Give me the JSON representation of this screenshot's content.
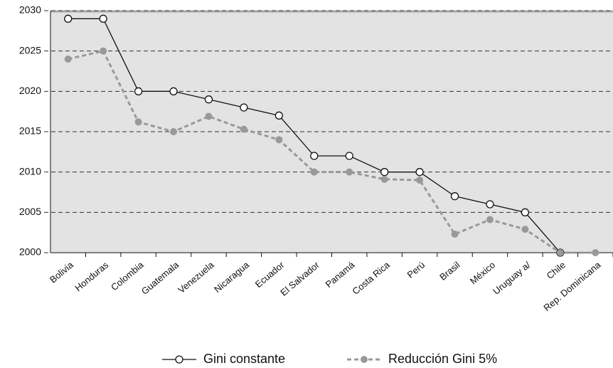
{
  "chart_data": {
    "type": "line",
    "categories": [
      "Bolivia",
      "Honduras",
      "Colombia",
      "Guatemala",
      "Venezuela",
      "Nicaragua",
      "Ecuador",
      "El Salvador",
      "Panamá",
      "Costa Rica",
      "Perú",
      "Brasil",
      "México",
      "Uruguay a/",
      "Chile",
      "Rep. Dominicana"
    ],
    "series": [
      {
        "name": "Gini constante",
        "color": "#111111",
        "values": [
          2029,
          2029,
          2020,
          2020,
          2019,
          2018,
          2017,
          2012,
          2012,
          2010,
          2010,
          2007,
          2006,
          2005,
          2000,
          null
        ]
      },
      {
        "name": "Reducción Gini 5%",
        "color": "#999999",
        "values": [
          2024,
          2025,
          2016.2,
          2015,
          2016.9,
          2015.3,
          2014,
          2010,
          2010,
          2009.1,
          2009,
          2002.3,
          2004.1,
          2002.9,
          2000,
          2000
        ]
      }
    ],
    "ylim": [
      2000,
      2030
    ],
    "yticks": [
      2000,
      2005,
      2010,
      2015,
      2020,
      2025,
      2030
    ],
    "grid": true
  }
}
